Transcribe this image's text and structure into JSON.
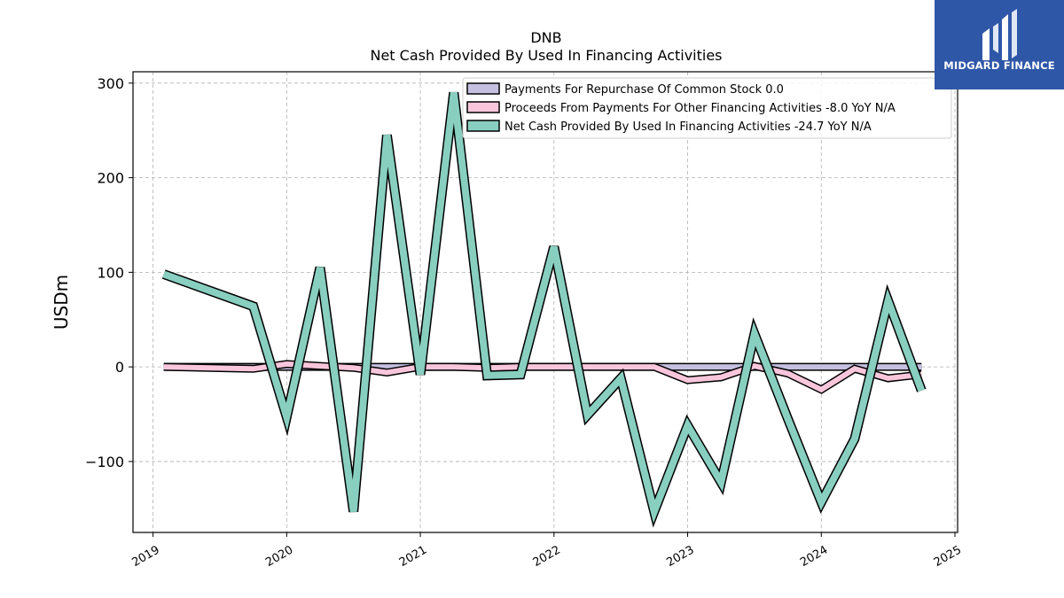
{
  "logo": {
    "text": "MIDGARD FINANCE",
    "color": "#2f57a8"
  },
  "chart_data": {
    "type": "line",
    "title": "DNB",
    "subtitle": "Net Cash Provided By Used In Financing Activities",
    "ylabel": "USDm",
    "xlabel": "",
    "ylim": [
      -175,
      312
    ],
    "xlim": [
      2018.85,
      2025.02
    ],
    "yticks": [
      -100,
      0,
      100,
      200,
      300
    ],
    "yticklabels": [
      "−100",
      "0",
      "100",
      "200",
      "300"
    ],
    "xticks": [
      2019,
      2020,
      2021,
      2022,
      2023,
      2024,
      2025
    ],
    "xticklabels": [
      "2019",
      "2020",
      "2021",
      "2022",
      "2023",
      "2024",
      "2025"
    ],
    "grid": true,
    "legend_position": "top-right",
    "x": [
      2019.08,
      2019.75,
      2020.0,
      2020.25,
      2020.5,
      2020.75,
      2021.0,
      2021.25,
      2021.5,
      2021.75,
      2022.0,
      2022.25,
      2022.5,
      2022.75,
      2023.0,
      2023.25,
      2023.5,
      2023.75,
      2024.0,
      2024.25,
      2024.5,
      2024.75
    ],
    "series": [
      {
        "name": "Payments For Repurchase Of Common Stock  0.0",
        "color": "#c5c0e0",
        "values": [
          0,
          0,
          0,
          0,
          0,
          0,
          0,
          0,
          0,
          0,
          0,
          0,
          0,
          0,
          0,
          0,
          0,
          0,
          0,
          0,
          0,
          0
        ]
      },
      {
        "name": "Proceeds From Payments For Other Financing Activities  -8.0 YoY N/A",
        "color": "#f9c6dc",
        "values": [
          0,
          -2,
          3,
          1,
          -1,
          -6,
          0,
          0,
          -1,
          0,
          0,
          0,
          0,
          0,
          -14,
          -11,
          1,
          -7,
          -24,
          -2,
          -12,
          -8
        ]
      },
      {
        "name": "Net Cash Provided By Used In Financing Activities  -24.7 YoY N/A",
        "color": "#88cfc0",
        "values": [
          98,
          64,
          -53,
          105,
          -153,
          245,
          -8,
          290,
          -9,
          -8,
          127,
          -51,
          -12,
          -153,
          -62,
          -122,
          35,
          -55,
          -143,
          -76,
          70,
          -25
        ]
      }
    ]
  }
}
